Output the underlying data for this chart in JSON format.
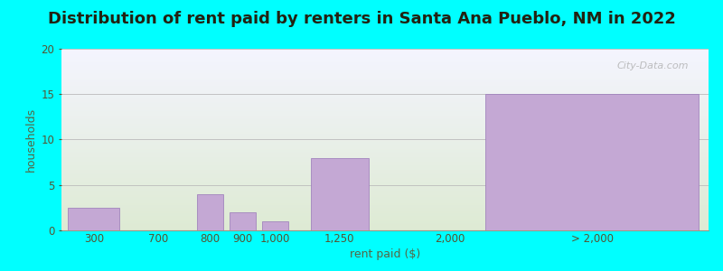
{
  "title": "Distribution of rent paid by renters in Santa Ana Pueblo, NM in 2022",
  "xlabel": "rent paid ($)",
  "ylabel": "households",
  "bar_labels": [
    "300",
    "700",
    "800",
    "900",
    "1,000",
    "1,250",
    "2,000",
    "> 2,000"
  ],
  "bar_heights": [
    2.5,
    0,
    4,
    2,
    1,
    8,
    0,
    15
  ],
  "bar_color": "#C4A8D4",
  "bar_edge_color": "#9878B8",
  "ylim": [
    0,
    20
  ],
  "yticks": [
    0,
    5,
    10,
    15,
    20
  ],
  "background_color": "#00FFFF",
  "plot_bg_top": "#F5F5FF",
  "plot_bg_bottom": "#DFE8D5",
  "grid_color": "#BBBBBB",
  "title_fontsize": 13,
  "axis_label_fontsize": 9,
  "tick_fontsize": 8.5,
  "watermark_text": "City-Data.com",
  "tick_color": "#555533",
  "label_color": "#556644"
}
